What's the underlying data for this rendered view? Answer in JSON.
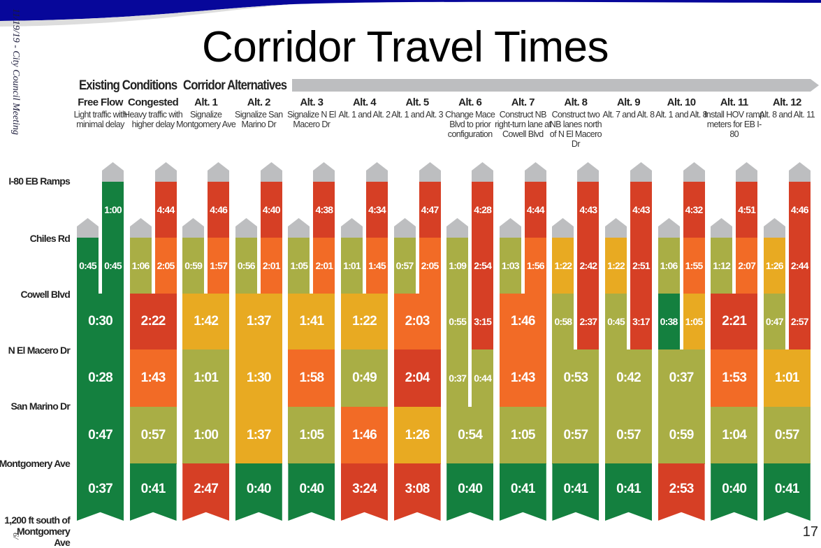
{
  "slide": {
    "title": "Corridor Travel Times",
    "side_text": "11/19/19 - City Council Meeting",
    "side_text_bottom": "6/",
    "page_number": "17"
  },
  "sections": {
    "existing": "Existing Conditions",
    "alternatives": "Corridor Alternatives"
  },
  "colors": {
    "G": "#14803F",
    "O": "#A9AE45",
    "Y": "#E8AA22",
    "Or": "#F26B26",
    "R": "#D63F25",
    "cap": "#BDBEC0",
    "brand": "#07079A"
  },
  "row_labels": [
    "I-80 EB Ramps",
    "Chiles Rd",
    "Cowell Blvd",
    "N El Macero Dr",
    "San Marino Dr",
    "Montgomery Ave",
    "1,200 ft south of Montgomery Ave"
  ],
  "columns": [
    {
      "name": "Free Flow",
      "desc": "Light traffic with minimal delay",
      "rows": [
        [
          [
            "1:00",
            "G"
          ]
        ],
        [
          [
            "0:45",
            "G"
          ],
          [
            "0:45",
            "G"
          ]
        ],
        [
          [
            "0:30",
            "G"
          ]
        ],
        [
          [
            "0:28",
            "G"
          ]
        ],
        [
          [
            "0:47",
            "G"
          ]
        ],
        [
          [
            "0:37",
            "G"
          ]
        ]
      ]
    },
    {
      "name": "Congested",
      "desc": "Heavy traffic with higher delay",
      "rows": [
        [
          [
            "4:44",
            "R"
          ]
        ],
        [
          [
            "1:06",
            "O"
          ],
          [
            "2:05",
            "Or"
          ]
        ],
        [
          [
            "2:22",
            "R"
          ]
        ],
        [
          [
            "1:43",
            "Or"
          ]
        ],
        [
          [
            "0:57",
            "O"
          ]
        ],
        [
          [
            "0:41",
            "G"
          ]
        ]
      ]
    },
    {
      "name": "Alt. 1",
      "desc": "Signalize Montgomery Ave",
      "rows": [
        [
          [
            "4:46",
            "R"
          ]
        ],
        [
          [
            "0:59",
            "O"
          ],
          [
            "1:57",
            "Or"
          ]
        ],
        [
          [
            "1:42",
            "Y"
          ]
        ],
        [
          [
            "1:01",
            "O"
          ]
        ],
        [
          [
            "1:00",
            "O"
          ]
        ],
        [
          [
            "2:47",
            "R"
          ]
        ]
      ]
    },
    {
      "name": "Alt. 2",
      "desc": "Signalize San Marino Dr",
      "rows": [
        [
          [
            "4:40",
            "R"
          ]
        ],
        [
          [
            "0:56",
            "O"
          ],
          [
            "2:01",
            "Or"
          ]
        ],
        [
          [
            "1:37",
            "Y"
          ]
        ],
        [
          [
            "1:30",
            "Y"
          ]
        ],
        [
          [
            "1:37",
            "Y"
          ]
        ],
        [
          [
            "0:40",
            "G"
          ]
        ]
      ]
    },
    {
      "name": "Alt. 3",
      "desc": "Signalize N El Macero Dr",
      "rows": [
        [
          [
            "4:38",
            "R"
          ]
        ],
        [
          [
            "1:05",
            "O"
          ],
          [
            "2:01",
            "Or"
          ]
        ],
        [
          [
            "1:41",
            "Y"
          ]
        ],
        [
          [
            "1:58",
            "Or"
          ]
        ],
        [
          [
            "1:05",
            "O"
          ]
        ],
        [
          [
            "0:40",
            "G"
          ]
        ]
      ]
    },
    {
      "name": "Alt. 4",
      "desc": "Alt. 1 and Alt. 2",
      "rows": [
        [
          [
            "4:34",
            "R"
          ]
        ],
        [
          [
            "1:01",
            "O"
          ],
          [
            "1:45",
            "Or"
          ]
        ],
        [
          [
            "1:22",
            "Y"
          ]
        ],
        [
          [
            "0:49",
            "O"
          ]
        ],
        [
          [
            "1:46",
            "Or"
          ]
        ],
        [
          [
            "3:24",
            "R"
          ]
        ]
      ]
    },
    {
      "name": "Alt. 5",
      "desc": "Alt. 1 and Alt. 3",
      "rows": [
        [
          [
            "4:47",
            "R"
          ]
        ],
        [
          [
            "0:57",
            "O"
          ],
          [
            "2:05",
            "Or"
          ]
        ],
        [
          [
            "2:03",
            "Or"
          ]
        ],
        [
          [
            "2:04",
            "R"
          ]
        ],
        [
          [
            "1:26",
            "Y"
          ]
        ],
        [
          [
            "3:08",
            "R"
          ]
        ]
      ]
    },
    {
      "name": "Alt. 6",
      "desc": "Change Mace Blvd to prior configuration",
      "rows": [
        [
          [
            "4:28",
            "R"
          ]
        ],
        [
          [
            "1:09",
            "O"
          ],
          [
            "2:54",
            "R"
          ]
        ],
        [
          [
            "0:55",
            "O"
          ],
          [
            "3:15",
            "R"
          ]
        ],
        [
          [
            "0:37",
            "O"
          ],
          [
            "0:44",
            "O"
          ]
        ],
        [
          [
            "0:54",
            "O"
          ]
        ],
        [
          [
            "0:40",
            "G"
          ]
        ]
      ]
    },
    {
      "name": "Alt. 7",
      "desc": "Construct NB right-turn lane at Cowell Blvd",
      "rows": [
        [
          [
            "4:44",
            "R"
          ]
        ],
        [
          [
            "1:03",
            "O"
          ],
          [
            "1:56",
            "Or"
          ]
        ],
        [
          [
            "1:46",
            "Or"
          ]
        ],
        [
          [
            "1:43",
            "Or"
          ]
        ],
        [
          [
            "1:05",
            "O"
          ]
        ],
        [
          [
            "0:41",
            "G"
          ]
        ]
      ]
    },
    {
      "name": "Alt. 8",
      "desc": "Construct two NB lanes north of N El Macero Dr",
      "rows": [
        [
          [
            "4:43",
            "R"
          ]
        ],
        [
          [
            "1:22",
            "Y"
          ],
          [
            "2:42",
            "R"
          ]
        ],
        [
          [
            "0:58",
            "O"
          ],
          [
            "2:37",
            "R"
          ]
        ],
        [
          [
            "0:53",
            "O"
          ]
        ],
        [
          [
            "0:57",
            "O"
          ]
        ],
        [
          [
            "0:41",
            "G"
          ]
        ]
      ]
    },
    {
      "name": "Alt. 9",
      "desc": "Alt. 7 and Alt. 8",
      "rows": [
        [
          [
            "4:43",
            "R"
          ]
        ],
        [
          [
            "1:22",
            "Y"
          ],
          [
            "2:51",
            "R"
          ]
        ],
        [
          [
            "0:45",
            "O"
          ],
          [
            "3:17",
            "R"
          ]
        ],
        [
          [
            "0:42",
            "O"
          ]
        ],
        [
          [
            "0:57",
            "O"
          ]
        ],
        [
          [
            "0:41",
            "G"
          ]
        ]
      ]
    },
    {
      "name": "Alt. 10",
      "desc": "Alt. 1 and Alt. 8",
      "rows": [
        [
          [
            "4:32",
            "R"
          ]
        ],
        [
          [
            "1:06",
            "O"
          ],
          [
            "1:55",
            "Or"
          ]
        ],
        [
          [
            "0:38",
            "G"
          ],
          [
            "1:05",
            "Y"
          ]
        ],
        [
          [
            "0:37",
            "O"
          ]
        ],
        [
          [
            "0:59",
            "O"
          ]
        ],
        [
          [
            "2:53",
            "R"
          ]
        ]
      ]
    },
    {
      "name": "Alt. 11",
      "desc": "Install HOV ramp meters for EB I-80",
      "rows": [
        [
          [
            "4:51",
            "R"
          ]
        ],
        [
          [
            "1:12",
            "O"
          ],
          [
            "2:07",
            "Or"
          ]
        ],
        [
          [
            "2:21",
            "R"
          ]
        ],
        [
          [
            "1:53",
            "Or"
          ]
        ],
        [
          [
            "1:04",
            "O"
          ]
        ],
        [
          [
            "0:40",
            "G"
          ]
        ]
      ]
    },
    {
      "name": "Alt. 12",
      "desc": "Alt. 8 and Alt. 11",
      "rows": [
        [
          [
            "4:46",
            "R"
          ]
        ],
        [
          [
            "1:26",
            "Y"
          ],
          [
            "2:44",
            "R"
          ]
        ],
        [
          [
            "0:47",
            "O"
          ],
          [
            "2:57",
            "R"
          ]
        ],
        [
          [
            "1:01",
            "Y"
          ]
        ],
        [
          [
            "0:57",
            "O"
          ]
        ],
        [
          [
            "0:41",
            "G"
          ]
        ]
      ]
    }
  ]
}
